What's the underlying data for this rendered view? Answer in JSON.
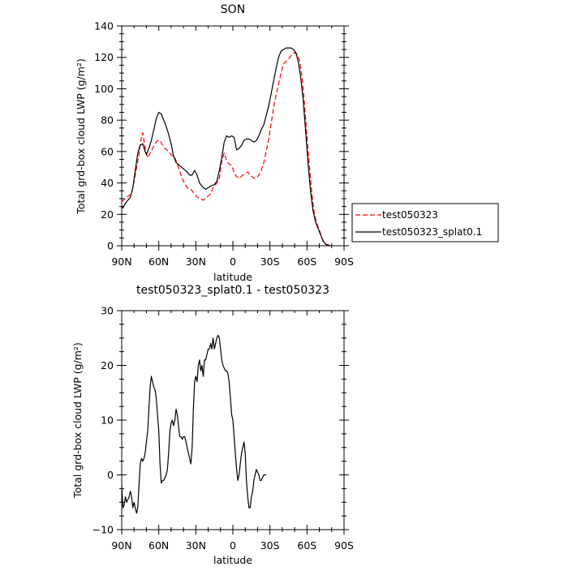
{
  "chart_data": [
    {
      "type": "line",
      "title": "SON",
      "xlabel": "latitude",
      "ylabel": "Total grd-box cloud LWP (g/m²)",
      "xlim": [
        90,
        -90
      ],
      "ylim": [
        0,
        140
      ],
      "x_ticks": [
        90,
        60,
        30,
        0,
        -30,
        -60,
        -90
      ],
      "x_tick_labels": [
        "90N",
        "60N",
        "30N",
        "0",
        "30S",
        "60S",
        "90S"
      ],
      "y_ticks": [
        0,
        20,
        40,
        60,
        80,
        100,
        120,
        140
      ],
      "y_tick_labels": [
        "0",
        "20",
        "40",
        "60",
        "80",
        "100",
        "120",
        "140"
      ],
      "grid": false,
      "legend_position": "right-outside",
      "series": [
        {
          "name": "test050323",
          "color": "#ff0000",
          "dash": "dashed",
          "points": [
            [
              90,
              28
            ],
            [
              86,
              31
            ],
            [
              82,
              33
            ],
            [
              79,
              45
            ],
            [
              76,
              58
            ],
            [
              74,
              70
            ],
            [
              73,
              72
            ],
            [
              71,
              62
            ],
            [
              69,
              56
            ],
            [
              67,
              59
            ],
            [
              65,
              62
            ],
            [
              63,
              65
            ],
            [
              61,
              67
            ],
            [
              59,
              67
            ],
            [
              57,
              64
            ],
            [
              55,
              62
            ],
            [
              52,
              60
            ],
            [
              50,
              58
            ],
            [
              47,
              56
            ],
            [
              44,
              50
            ],
            [
              42,
              45
            ],
            [
              40,
              41
            ],
            [
              37,
              37
            ],
            [
              34,
              36
            ],
            [
              32,
              34
            ],
            [
              29,
              31
            ],
            [
              26,
              30
            ],
            [
              24,
              29
            ],
            [
              21,
              31
            ],
            [
              18,
              33
            ],
            [
              16,
              37
            ],
            [
              13,
              40
            ],
            [
              11,
              43
            ],
            [
              9,
              54
            ],
            [
              7,
              59
            ],
            [
              5,
              54
            ],
            [
              3,
              52
            ],
            [
              1,
              51
            ],
            [
              -1,
              47
            ],
            [
              -3,
              44
            ],
            [
              -5,
              43
            ],
            [
              -8,
              45
            ],
            [
              -10,
              46
            ],
            [
              -12,
              47
            ],
            [
              -14,
              45
            ],
            [
              -17,
              43
            ],
            [
              -19,
              43
            ],
            [
              -21,
              45
            ],
            [
              -23,
              48
            ],
            [
              -25,
              53
            ],
            [
              -27,
              60
            ],
            [
              -29,
              68
            ],
            [
              -31,
              78
            ],
            [
              -33,
              88
            ],
            [
              -35,
              96
            ],
            [
              -37,
              103
            ],
            [
              -39,
              110
            ],
            [
              -41,
              116
            ],
            [
              -44,
              118
            ],
            [
              -46,
              120
            ],
            [
              -48,
              122
            ],
            [
              -50,
              123
            ],
            [
              -52,
              122
            ],
            [
              -54,
              118
            ],
            [
              -56,
              108
            ],
            [
              -58,
              90
            ],
            [
              -60,
              70
            ],
            [
              -62,
              50
            ],
            [
              -64,
              33
            ],
            [
              -66,
              20
            ],
            [
              -68,
              14
            ],
            [
              -70,
              10
            ],
            [
              -72,
              5
            ],
            [
              -74,
              2
            ],
            [
              -76,
              0.5
            ],
            [
              -78,
              0
            ],
            [
              -80,
              0
            ]
          ]
        },
        {
          "name": "test050323_splat0.1",
          "color": "#000000",
          "dash": "solid",
          "points": [
            [
              90,
              25
            ],
            [
              89,
              24
            ],
            [
              87,
              27
            ],
            [
              85,
              29
            ],
            [
              83,
              31
            ],
            [
              81,
              37
            ],
            [
              79,
              48
            ],
            [
              77,
              59
            ],
            [
              75,
              64
            ],
            [
              73,
              65
            ],
            [
              71,
              60
            ],
            [
              70,
              58
            ],
            [
              68,
              62
            ],
            [
              66,
              67
            ],
            [
              64,
              74
            ],
            [
              62,
              81
            ],
            [
              60,
              85
            ],
            [
              58,
              84
            ],
            [
              56,
              80
            ],
            [
              54,
              76
            ],
            [
              52,
              71
            ],
            [
              50,
              65
            ],
            [
              48,
              57
            ],
            [
              46,
              53
            ],
            [
              43,
              51
            ],
            [
              40,
              49
            ],
            [
              37,
              47
            ],
            [
              35,
              45
            ],
            [
              33,
              45
            ],
            [
              31,
              48
            ],
            [
              29,
              45
            ],
            [
              27,
              40
            ],
            [
              24,
              37
            ],
            [
              22,
              36
            ],
            [
              20,
              37
            ],
            [
              18,
              38
            ],
            [
              15,
              39
            ],
            [
              13,
              41
            ],
            [
              11,
              48
            ],
            [
              9,
              56
            ],
            [
              7,
              66
            ],
            [
              5,
              70
            ],
            [
              3,
              69
            ],
            [
              1,
              70
            ],
            [
              -1,
              69
            ],
            [
              -3,
              61
            ],
            [
              -5,
              62
            ],
            [
              -7,
              64
            ],
            [
              -9,
              67
            ],
            [
              -11,
              68
            ],
            [
              -13,
              68
            ],
            [
              -15,
              67
            ],
            [
              -17,
              66
            ],
            [
              -19,
              67
            ],
            [
              -21,
              70
            ],
            [
              -23,
              74
            ],
            [
              -25,
              77
            ],
            [
              -27,
              83
            ],
            [
              -29,
              89
            ],
            [
              -31,
              97
            ],
            [
              -33,
              105
            ],
            [
              -35,
              113
            ],
            [
              -37,
              120
            ],
            [
              -39,
              124
            ],
            [
              -41,
              125
            ],
            [
              -43,
              126
            ],
            [
              -45,
              126
            ],
            [
              -47,
              126
            ],
            [
              -49,
              125
            ],
            [
              -51,
              123
            ],
            [
              -53,
              117
            ],
            [
              -55,
              107
            ],
            [
              -57,
              92
            ],
            [
              -59,
              72
            ],
            [
              -61,
              51
            ],
            [
              -63,
              34
            ],
            [
              -65,
              22
            ],
            [
              -67,
              15
            ],
            [
              -69,
              11
            ],
            [
              -71,
              7
            ],
            [
              -73,
              3
            ],
            [
              -75,
              1
            ],
            [
              -77,
              0.5
            ],
            [
              -79,
              0
            ]
          ]
        }
      ]
    },
    {
      "type": "line",
      "title": "test050323_splat0.1 - test050323",
      "xlabel": "latitude",
      "ylabel": "Total grd-box cloud LWP (g/m²)",
      "xlim": [
        90,
        -90
      ],
      "ylim": [
        -10,
        30
      ],
      "x_ticks": [
        90,
        60,
        30,
        0,
        -30,
        -60,
        -90
      ],
      "x_tick_labels": [
        "90N",
        "60N",
        "30N",
        "0",
        "30S",
        "60S",
        "90S"
      ],
      "y_ticks": [
        -10,
        0,
        10,
        20,
        30
      ],
      "y_tick_labels": [
        "−10",
        "0",
        "10",
        "20",
        "30"
      ],
      "grid": false,
      "series": [
        {
          "color": "#000000",
          "dash": "solid",
          "points": [
            [
              90,
              -2
            ],
            [
              89,
              -6
            ],
            [
              88,
              -5.5
            ],
            [
              87,
              -4
            ],
            [
              86,
              -5
            ],
            [
              85,
              -4.5
            ],
            [
              84,
              -4
            ],
            [
              83,
              -3
            ],
            [
              82,
              -4
            ],
            [
              81,
              -6
            ],
            [
              80,
              -5
            ],
            [
              79,
              -6
            ],
            [
              78,
              -7
            ],
            [
              77,
              -6
            ],
            [
              76,
              -2
            ],
            [
              75,
              2
            ],
            [
              74,
              3
            ],
            [
              73,
              2.5
            ],
            [
              72,
              3
            ],
            [
              71,
              4
            ],
            [
              70,
              6
            ],
            [
              69,
              8
            ],
            [
              68,
              12
            ],
            [
              67,
              16
            ],
            [
              66,
              18
            ],
            [
              65,
              17
            ],
            [
              64,
              16
            ],
            [
              63,
              15.5
            ],
            [
              62,
              14
            ],
            [
              61,
              11
            ],
            [
              60,
              8
            ],
            [
              59,
              2
            ],
            [
              58,
              -1.5
            ],
            [
              57,
              -1
            ],
            [
              56,
              -1
            ],
            [
              55,
              -0.5
            ],
            [
              54,
              0
            ],
            [
              53,
              1
            ],
            [
              52,
              4
            ],
            [
              51,
              8
            ],
            [
              50,
              9.5
            ],
            [
              49,
              10
            ],
            [
              48,
              9
            ],
            [
              47,
              10
            ],
            [
              46,
              12
            ],
            [
              45,
              11
            ],
            [
              44,
              9
            ],
            [
              43,
              7
            ],
            [
              42,
              7
            ],
            [
              41,
              6.5
            ],
            [
              40,
              7
            ],
            [
              39,
              7
            ],
            [
              38,
              6
            ],
            [
              37,
              5
            ],
            [
              36,
              4
            ],
            [
              35,
              3
            ],
            [
              34,
              2
            ],
            [
              33,
              5
            ],
            [
              32,
              12
            ],
            [
              31,
              17
            ],
            [
              30,
              18
            ],
            [
              29,
              17
            ],
            [
              28,
              20
            ],
            [
              27,
              21
            ],
            [
              26,
              19
            ],
            [
              25,
              20
            ],
            [
              24,
              18
            ],
            [
              23,
              21
            ],
            [
              22,
              21
            ],
            [
              21,
              22
            ],
            [
              20,
              23
            ],
            [
              19,
              23
            ],
            [
              18,
              24
            ],
            [
              17,
              23
            ],
            [
              16,
              25
            ],
            [
              15,
              23
            ],
            [
              14,
              24
            ],
            [
              13,
              25
            ],
            [
              12,
              25.5
            ],
            [
              11,
              25
            ],
            [
              10,
              23
            ],
            [
              9,
              21
            ],
            [
              8,
              20
            ],
            [
              7,
              19.5
            ],
            [
              6,
              19
            ],
            [
              5,
              19
            ],
            [
              4,
              18.5
            ],
            [
              3,
              17
            ],
            [
              2,
              14
            ],
            [
              1,
              11
            ],
            [
              0,
              10
            ],
            [
              -1,
              7
            ],
            [
              -2,
              4
            ],
            [
              -3,
              1
            ],
            [
              -4,
              -1
            ],
            [
              -5,
              0
            ],
            [
              -6,
              2
            ],
            [
              -7,
              4
            ],
            [
              -8,
              5
            ],
            [
              -9,
              6
            ],
            [
              -10,
              4
            ],
            [
              -11,
              -1
            ],
            [
              -12,
              -4
            ],
            [
              -13,
              -6
            ],
            [
              -14,
              -6
            ],
            [
              -15,
              -4
            ],
            [
              -16,
              -3
            ],
            [
              -17,
              -1
            ],
            [
              -18,
              0
            ],
            [
              -19,
              1
            ],
            [
              -20,
              0.5
            ],
            [
              -21,
              0
            ],
            [
              -22,
              -1
            ],
            [
              -23,
              -1
            ],
            [
              -24,
              -0.5
            ],
            [
              -25,
              0
            ],
            [
              -26,
              0
            ],
            [
              -27,
              0
            ]
          ]
        }
      ]
    }
  ]
}
